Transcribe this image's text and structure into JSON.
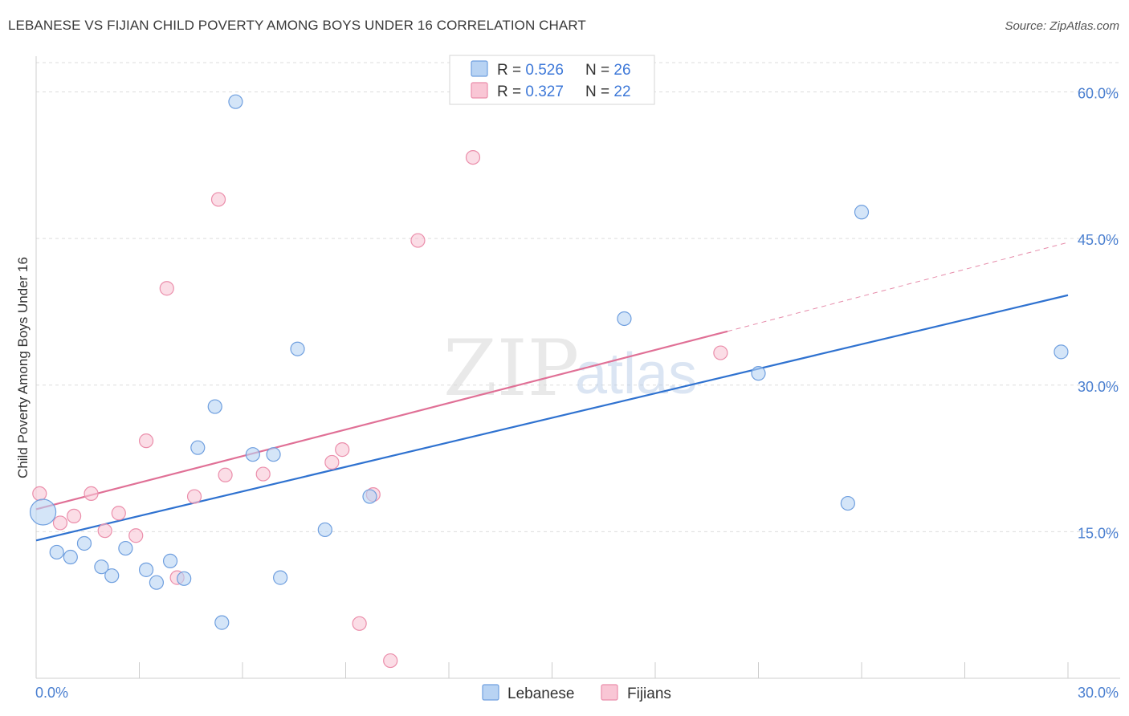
{
  "header": {
    "title": "LEBANESE VS FIJIAN CHILD POVERTY AMONG BOYS UNDER 16 CORRELATION CHART",
    "source": "Source: ZipAtlas.com"
  },
  "watermark": {
    "zip": "ZIP",
    "atlas": "atlas"
  },
  "colors": {
    "lebanese_fill": "#b8d3f3",
    "lebanese_stroke": "#6f9fdf",
    "lebanese_line": "#2f72d0",
    "fijian_fill": "#f9c6d5",
    "fijian_stroke": "#eb8eab",
    "fijian_line": "#e07096",
    "grid": "#dddddd",
    "tick_label": "#4a7fd0"
  },
  "legend": {
    "lebanese": {
      "r_label": "R = ",
      "r_value": "0.526",
      "n_label": "N = ",
      "n_value": "26"
    },
    "fijian": {
      "r_label": "R = ",
      "r_value": "0.327",
      "n_label": "N = ",
      "n_value": "22"
    }
  },
  "chart_data": {
    "type": "scatter",
    "title": "LEBANESE VS FIJIAN CHILD POVERTY AMONG BOYS UNDER 16 CORRELATION CHART",
    "xlabel": "",
    "ylabel": "Child Poverty Among Boys Under 16",
    "xlim": [
      0,
      30
    ],
    "ylim": [
      0,
      63
    ],
    "x_tick_labels": [
      "0.0%",
      "30.0%"
    ],
    "y_ticks": [
      15,
      30,
      45,
      60
    ],
    "y_tick_labels": [
      "15.0%",
      "30.0%",
      "45.0%",
      "60.0%"
    ],
    "grid": true,
    "legend_position": "top-center",
    "series": [
      {
        "name": "Lebanese",
        "points": [
          {
            "x": 0.2,
            "y": 17.0,
            "size": "large"
          },
          {
            "x": 0.6,
            "y": 12.9
          },
          {
            "x": 1.0,
            "y": 12.4
          },
          {
            "x": 1.4,
            "y": 13.8
          },
          {
            "x": 1.9,
            "y": 11.4
          },
          {
            "x": 2.2,
            "y": 10.5
          },
          {
            "x": 2.6,
            "y": 13.3
          },
          {
            "x": 3.2,
            "y": 11.1
          },
          {
            "x": 3.5,
            "y": 9.8
          },
          {
            "x": 3.9,
            "y": 12.0
          },
          {
            "x": 4.3,
            "y": 10.2
          },
          {
            "x": 4.7,
            "y": 23.6
          },
          {
            "x": 5.2,
            "y": 27.8
          },
          {
            "x": 5.4,
            "y": 5.7
          },
          {
            "x": 5.8,
            "y": 59.0
          },
          {
            "x": 6.3,
            "y": 22.9
          },
          {
            "x": 6.9,
            "y": 22.9
          },
          {
            "x": 7.1,
            "y": 10.3
          },
          {
            "x": 7.6,
            "y": 33.7
          },
          {
            "x": 8.4,
            "y": 15.2
          },
          {
            "x": 9.7,
            "y": 18.6
          },
          {
            "x": 17.1,
            "y": 36.8
          },
          {
            "x": 21.0,
            "y": 31.2
          },
          {
            "x": 23.6,
            "y": 17.9
          },
          {
            "x": 24.0,
            "y": 47.7
          },
          {
            "x": 29.8,
            "y": 33.4
          }
        ],
        "trend": {
          "x0": 0,
          "y0": 14.1,
          "x1": 30,
          "y1": 39.2
        }
      },
      {
        "name": "Fijians",
        "points": [
          {
            "x": 0.1,
            "y": 18.9
          },
          {
            "x": 0.7,
            "y": 15.9
          },
          {
            "x": 1.1,
            "y": 16.6
          },
          {
            "x": 1.6,
            "y": 18.9
          },
          {
            "x": 2.0,
            "y": 15.1
          },
          {
            "x": 2.4,
            "y": 16.9
          },
          {
            "x": 2.9,
            "y": 14.6
          },
          {
            "x": 3.2,
            "y": 24.3
          },
          {
            "x": 3.8,
            "y": 39.9
          },
          {
            "x": 4.1,
            "y": 10.3
          },
          {
            "x": 4.6,
            "y": 18.6
          },
          {
            "x": 5.3,
            "y": 49.0
          },
          {
            "x": 5.5,
            "y": 20.8
          },
          {
            "x": 6.6,
            "y": 20.9
          },
          {
            "x": 8.6,
            "y": 22.1
          },
          {
            "x": 8.9,
            "y": 23.4
          },
          {
            "x": 9.4,
            "y": 5.6
          },
          {
            "x": 9.8,
            "y": 18.8
          },
          {
            "x": 10.3,
            "y": 1.8
          },
          {
            "x": 11.1,
            "y": 44.8
          },
          {
            "x": 12.7,
            "y": 53.3
          },
          {
            "x": 19.9,
            "y": 33.3
          }
        ],
        "trend": {
          "x0": 0,
          "y0": 17.3,
          "x1": 20.1,
          "y1": 35.5
        },
        "trend_extension": {
          "x0": 20.1,
          "y0": 35.5,
          "x1": 30,
          "y1": 44.6
        }
      }
    ]
  },
  "bottom_legend": {
    "lebanese_label": "Lebanese",
    "fijian_label": "Fijians"
  }
}
